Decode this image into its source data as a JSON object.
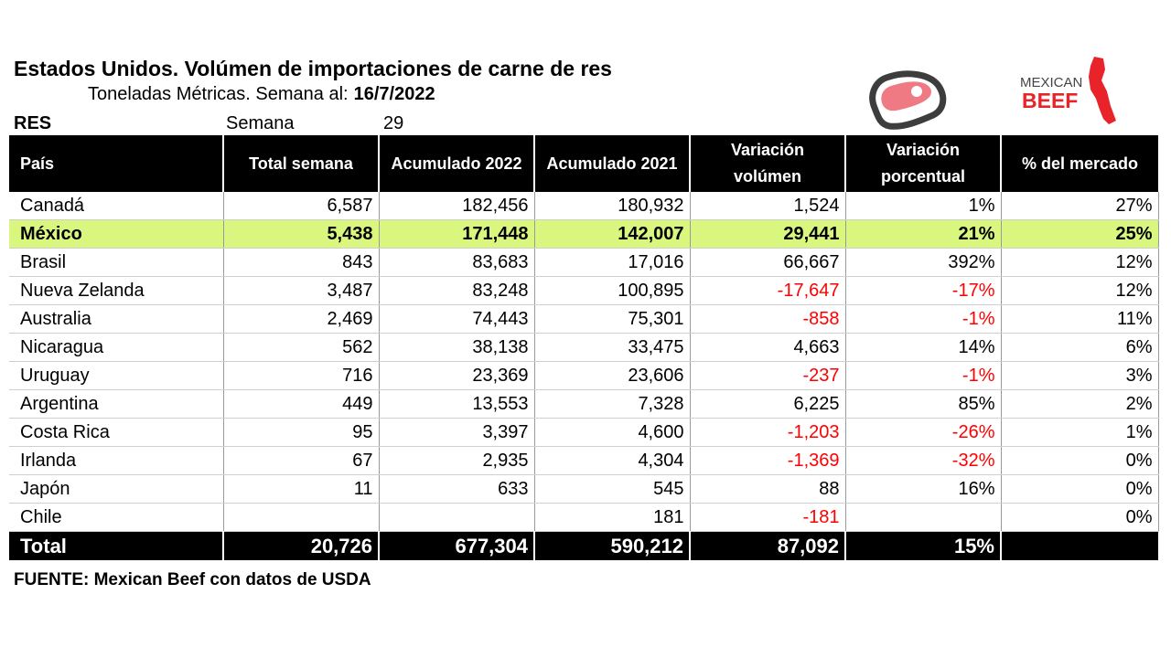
{
  "header": {
    "title": "Estados Unidos. Volúmen de importaciones de carne de res",
    "subtitle": "Toneladas Métricas. Semana al:",
    "date": "16/7/2022",
    "category": "RES",
    "week_label": "Semana",
    "week_number": "29"
  },
  "logos": {
    "meat_icon": "meat-steak-icon",
    "brand_line1": "MEXICAN",
    "brand_line2": "BEEF",
    "brand_color": "#e8232a"
  },
  "columns": [
    "País",
    "Total semana",
    "Acumulado 2022",
    "Acumulado 2021",
    "Variación volúmen",
    "Variación porcentual",
    "% del mercado"
  ],
  "rows": [
    {
      "pais": "Canadá",
      "semana": "6,587",
      "acum2022": "182,456",
      "acum2021": "180,932",
      "var_vol": "1,524",
      "var_pct": "1%",
      "mercado": "27%"
    },
    {
      "pais": "México",
      "semana": "5,438",
      "acum2022": "171,448",
      "acum2021": "142,007",
      "var_vol": "29,441",
      "var_pct": "21%",
      "mercado": "25%"
    },
    {
      "pais": "Brasil",
      "semana": "843",
      "acum2022": "83,683",
      "acum2021": "17,016",
      "var_vol": "66,667",
      "var_pct": "392%",
      "mercado": "12%"
    },
    {
      "pais": "Nueva Zelanda",
      "semana": "3,487",
      "acum2022": "83,248",
      "acum2021": "100,895",
      "var_vol": "-17,647",
      "var_pct": "-17%",
      "mercado": "12%"
    },
    {
      "pais": "Australia",
      "semana": "2,469",
      "acum2022": "74,443",
      "acum2021": "75,301",
      "var_vol": "-858",
      "var_pct": "-1%",
      "mercado": "11%"
    },
    {
      "pais": "Nicaragua",
      "semana": "562",
      "acum2022": "38,138",
      "acum2021": "33,475",
      "var_vol": "4,663",
      "var_pct": "14%",
      "mercado": "6%"
    },
    {
      "pais": "Uruguay",
      "semana": "716",
      "acum2022": "23,369",
      "acum2021": "23,606",
      "var_vol": "-237",
      "var_pct": "-1%",
      "mercado": "3%"
    },
    {
      "pais": "Argentina",
      "semana": "449",
      "acum2022": "13,553",
      "acum2021": "7,328",
      "var_vol": "6,225",
      "var_pct": "85%",
      "mercado": "2%"
    },
    {
      "pais": "Costa Rica",
      "semana": "95",
      "acum2022": "3,397",
      "acum2021": "4,600",
      "var_vol": "-1,203",
      "var_pct": "-26%",
      "mercado": "1%"
    },
    {
      "pais": "Irlanda",
      "semana": "67",
      "acum2022": "2,935",
      "acum2021": "4,304",
      "var_vol": "-1,369",
      "var_pct": "-32%",
      "mercado": "0%"
    },
    {
      "pais": "Japón",
      "semana": "11",
      "acum2022": "633",
      "acum2021": "545",
      "var_vol": "88",
      "var_pct": "16%",
      "mercado": "0%"
    },
    {
      "pais": "Chile",
      "semana": "",
      "acum2022": "",
      "acum2021": "181",
      "var_vol": "-181",
      "var_pct": "",
      "mercado": "0%"
    }
  ],
  "total": {
    "pais": "Total",
    "semana": "20,726",
    "acum2022": "677,304",
    "acum2021": "590,212",
    "var_vol": "87,092",
    "var_pct": "15%",
    "mercado": ""
  },
  "source": "FUENTE: Mexican Beef con datos de USDA",
  "colors": {
    "highlight_row": "#d9f77f",
    "negative": "#ff0000",
    "header_bg": "#000000"
  }
}
